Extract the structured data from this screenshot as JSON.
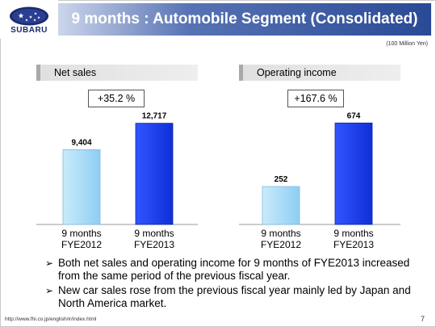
{
  "header": {
    "logo_text": "SUBARU",
    "title": "9 months : Automobile Segment (Consolidated)"
  },
  "unit_note": "(100 Million Yen)",
  "colors": {
    "bar_fye2012": "#a9dcf7",
    "bar_fye2013": "#1a3ef0",
    "title_bar": "#2a4a96"
  },
  "chart_data": [
    {
      "type": "bar",
      "title": "Net sales",
      "change_label": "+35.2 %",
      "categories": [
        "9 months\nFYE2012",
        "9 months\nFYE2013"
      ],
      "category_lines": [
        [
          "9 months",
          "FYE2012"
        ],
        [
          "9 months",
          "FYE2013"
        ]
      ],
      "values": [
        9404,
        12717
      ],
      "value_labels": [
        "9,404",
        "12,717"
      ],
      "ylim": [
        0,
        14000
      ]
    },
    {
      "type": "bar",
      "title": "Operating income",
      "change_label": "+167.6 %",
      "categories": [
        "9 months\nFYE2012",
        "9 months\nFYE2013"
      ],
      "category_lines": [
        [
          "9 months",
          "FYE2012"
        ],
        [
          "9 months",
          "FYE2013"
        ]
      ],
      "values": [
        252,
        674
      ],
      "value_labels": [
        "252",
        "674"
      ],
      "ylim": [
        0,
        740
      ]
    }
  ],
  "bullets": [
    "Both net sales and operating income for 9 months of FYE2013 increased from the same period of the previous fiscal year.",
    "New car sales rose from the previous fiscal year mainly led by Japan and North America market."
  ],
  "footer": {
    "url": "http://www.fhi.co.jp/english/ir/index.html",
    "page": "7"
  }
}
